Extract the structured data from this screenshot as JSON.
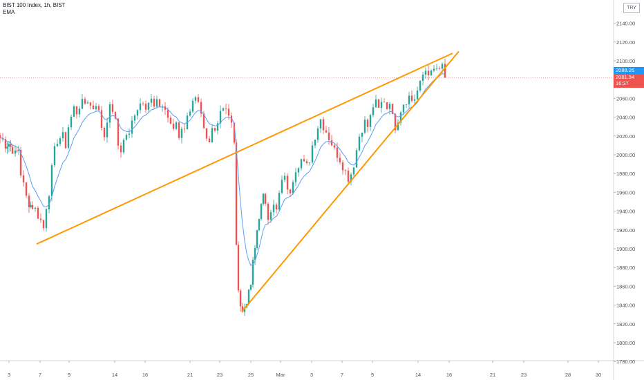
{
  "legend": {
    "symbol": "BIST 100 Index, 1h, BIST",
    "indicator": "EMA"
  },
  "currency_badge": "TRY",
  "price_tags": {
    "ema_value": "2088.26",
    "last_price": "2081.94",
    "countdown": "16:37"
  },
  "colors": {
    "up": "#26a69a",
    "down": "#ef5350",
    "ema": "#5b9cf6",
    "trendline": "#ff9800",
    "axis_text": "#50535e",
    "price_line": "#ef9a9a"
  },
  "chart_data": {
    "type": "candlestick",
    "title": "BIST 100 Index, 1h, BIST",
    "ylim": [
      1770,
      2160
    ],
    "y_ticks": [
      1780,
      1800,
      1820,
      1840,
      1860,
      1880,
      1900,
      1920,
      1940,
      1960,
      1980,
      2000,
      2020,
      2040,
      2060,
      2080,
      2100,
      2120,
      2140
    ],
    "x_ticks": [
      "3",
      "7",
      "9",
      "14",
      "16",
      "21",
      "23",
      "25",
      "Mar",
      "3",
      "7",
      "9",
      "14",
      "16",
      "21",
      "23",
      "28",
      "30"
    ],
    "series": [
      {
        "name": "EMA",
        "type": "line"
      }
    ],
    "close_path": [
      [
        0,
        2018
      ],
      [
        4,
        2016
      ],
      [
        8,
        2010
      ],
      [
        13,
        2012
      ],
      [
        18,
        2005
      ],
      [
        22,
        2001
      ],
      [
        27,
        2006
      ],
      [
        30,
        1980
      ],
      [
        34,
        1968
      ],
      [
        38,
        1955
      ],
      [
        42,
        1948
      ],
      [
        47,
        1945
      ],
      [
        51,
        1942
      ],
      [
        55,
        1935
      ],
      [
        59,
        1930
      ],
      [
        63,
        1922
      ],
      [
        67,
        1945
      ],
      [
        71,
        1960
      ],
      [
        75,
        1985
      ],
      [
        79,
        2005
      ],
      [
        83,
        2015
      ],
      [
        87,
        2018
      ],
      [
        91,
        2020
      ],
      [
        95,
        2010
      ],
      [
        99,
        2030
      ],
      [
        103,
        2040
      ],
      [
        107,
        2050
      ],
      [
        111,
        2045
      ],
      [
        115,
        2052
      ],
      [
        119,
        2055
      ],
      [
        123,
        2055
      ],
      [
        127,
        2058
      ],
      [
        131,
        2052
      ],
      [
        135,
        2050
      ],
      [
        139,
        2055
      ],
      [
        143,
        2045
      ],
      [
        147,
        2030
      ],
      [
        151,
        2020
      ],
      [
        155,
        2038
      ],
      [
        159,
        2050
      ],
      [
        163,
        2048
      ],
      [
        167,
        2035
      ],
      [
        171,
        2010
      ],
      [
        175,
        2005
      ],
      [
        179,
        2015
      ],
      [
        183,
        2022
      ],
      [
        187,
        2020
      ],
      [
        191,
        2035
      ],
      [
        195,
        2045
      ],
      [
        199,
        2050
      ],
      [
        203,
        2055
      ],
      [
        207,
        2058
      ],
      [
        211,
        2052
      ],
      [
        215,
        2056
      ],
      [
        219,
        2058
      ],
      [
        223,
        2050
      ],
      [
        227,
        2055
      ],
      [
        231,
        2053
      ],
      [
        235,
        2052
      ],
      [
        239,
        2048
      ],
      [
        243,
        2040
      ],
      [
        247,
        2030
      ],
      [
        251,
        2028
      ],
      [
        255,
        2035
      ],
      [
        259,
        2020
      ],
      [
        263,
        2030
      ],
      [
        267,
        2025
      ],
      [
        271,
        2045
      ],
      [
        275,
        2048
      ],
      [
        279,
        2055
      ],
      [
        283,
        2058
      ],
      [
        287,
        2052
      ],
      [
        291,
        2040
      ],
      [
        295,
        2025
      ],
      [
        299,
        2015
      ],
      [
        303,
        2012
      ],
      [
        307,
        2028
      ],
      [
        311,
        2030
      ],
      [
        315,
        2035
      ],
      [
        319,
        2048
      ],
      [
        323,
        2052
      ],
      [
        327,
        2050
      ],
      [
        331,
        2040
      ],
      [
        335,
        2032
      ],
      [
        339,
        2015
      ],
      [
        342,
        1900
      ],
      [
        345,
        1860
      ],
      [
        348,
        1840
      ],
      [
        351,
        1832
      ],
      [
        354,
        1838
      ],
      [
        357,
        1845
      ],
      [
        360,
        1852
      ],
      [
        363,
        1862
      ],
      [
        366,
        1885
      ],
      [
        369,
        1900
      ],
      [
        372,
        1920
      ],
      [
        375,
        1935
      ],
      [
        378,
        1945
      ],
      [
        381,
        1955
      ],
      [
        384,
        1950
      ],
      [
        388,
        1935
      ],
      [
        392,
        1942
      ],
      [
        396,
        1945
      ],
      [
        400,
        1940
      ],
      [
        404,
        1958
      ],
      [
        408,
        1970
      ],
      [
        412,
        1980
      ],
      [
        416,
        1960
      ],
      [
        420,
        1962
      ],
      [
        424,
        1975
      ],
      [
        428,
        1985
      ],
      [
        432,
        1990
      ],
      [
        436,
        1995
      ],
      [
        440,
        1990
      ],
      [
        444,
        1988
      ],
      [
        448,
        1995
      ],
      [
        452,
        2010
      ],
      [
        456,
        2020
      ],
      [
        460,
        2030
      ],
      [
        464,
        2038
      ],
      [
        468,
        2030
      ],
      [
        472,
        2025
      ],
      [
        476,
        2018
      ],
      [
        480,
        2012
      ],
      [
        484,
        2005
      ],
      [
        488,
        2000
      ],
      [
        492,
        1995
      ],
      [
        496,
        1988
      ],
      [
        500,
        1982
      ],
      [
        504,
        1975
      ],
      [
        508,
        1980
      ],
      [
        512,
        1990
      ],
      [
        516,
        2005
      ],
      [
        520,
        2020
      ],
      [
        524,
        2028
      ],
      [
        528,
        2035
      ],
      [
        532,
        2030
      ],
      [
        536,
        2040
      ],
      [
        540,
        2052
      ],
      [
        544,
        2055
      ],
      [
        548,
        2048
      ],
      [
        552,
        2055
      ],
      [
        556,
        2058
      ],
      [
        560,
        2050
      ],
      [
        564,
        2058
      ],
      [
        568,
        2040
      ],
      [
        572,
        2030
      ],
      [
        576,
        2038
      ],
      [
        580,
        2048
      ],
      [
        584,
        2055
      ],
      [
        588,
        2058
      ],
      [
        592,
        2062
      ],
      [
        596,
        2058
      ],
      [
        600,
        2060
      ],
      [
        604,
        2068
      ],
      [
        608,
        2075
      ],
      [
        612,
        2085
      ],
      [
        616,
        2090
      ],
      [
        620,
        2088
      ],
      [
        624,
        2086
      ],
      [
        628,
        2090
      ],
      [
        632,
        2092
      ],
      [
        636,
        2088
      ],
      [
        640,
        2095
      ],
      [
        644,
        2082
      ]
    ],
    "trendlines": [
      {
        "x1": 53,
        "y1": 1905,
        "x2": 655,
        "y2": 2108
      },
      {
        "x1": 350,
        "y1": 1833,
        "x2": 664,
        "y2": 2110
      }
    ],
    "last_price": 2081.94,
    "ema_value": 2088.26
  }
}
